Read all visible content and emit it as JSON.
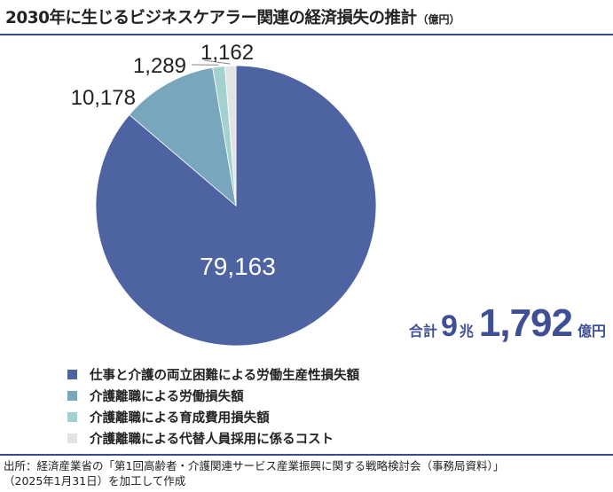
{
  "title": "2030年に生じるビジネスケアラー関連の経済損失の推計",
  "title_unit": "（億円）",
  "total": {
    "label": "合計",
    "part1": "9",
    "part1_unit": "兆",
    "part2": "1,792",
    "unit": "億円"
  },
  "chart_data": {
    "type": "pie",
    "start_angle_deg": 0,
    "direction": "clockwise",
    "slices": [
      {
        "label": "仕事と介護の両立困難による労働生産性損失額",
        "value": 79163,
        "value_label": "79,163",
        "color": "#4e64a2"
      },
      {
        "label": "介護離職による労働損失額",
        "value": 10178,
        "value_label": "10,178",
        "color": "#77a6bd"
      },
      {
        "label": "介護離職による育成費用損失額",
        "value": 1289,
        "value_label": "1,289",
        "color": "#a3d1cf"
      },
      {
        "label": "介護離職による代替人員採用に係るコスト",
        "value": 1162,
        "value_label": "1,162",
        "color": "#e2e4e3"
      }
    ]
  },
  "source": [
    "出所：経済産業省の「第1回高齢者・介護関連サービス産業振興に関する戦略検討会（事務局資料）」",
    "（2025年1月31日）を加工して作成"
  ]
}
